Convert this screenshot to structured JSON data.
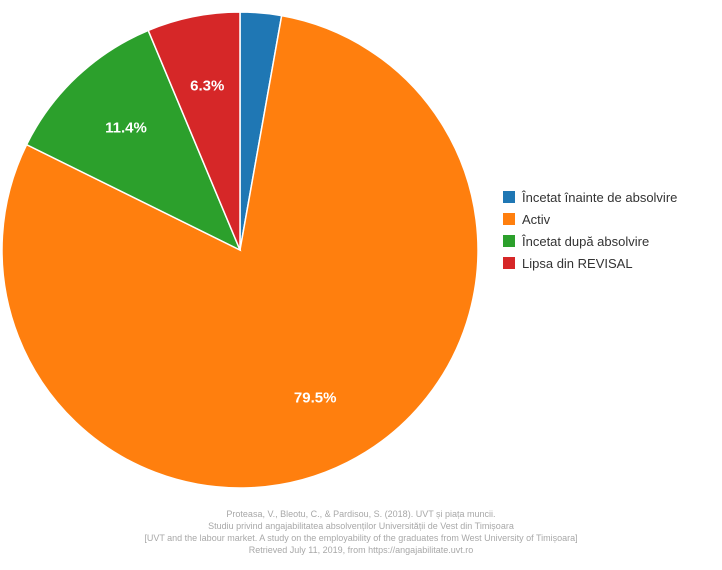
{
  "chart_data": {
    "type": "pie",
    "title": "",
    "slices": [
      {
        "label": "Încetat înainte de absolvire",
        "value": 2.8,
        "color": "#1f77b4",
        "data_label": ""
      },
      {
        "label": "Activ",
        "value": 79.5,
        "color": "#ff7f0e",
        "data_label": "79.5%"
      },
      {
        "label": "Încetat după absolvire",
        "value": 11.4,
        "color": "#2ca02c",
        "data_label": "11.4%"
      },
      {
        "label": "Lipsa din REVISAL",
        "value": 6.3,
        "color": "#d62728",
        "data_label": "6.3%"
      }
    ],
    "legend_position": "right",
    "start_angle": "12 o'clock",
    "direction": "clockwise"
  },
  "source": {
    "line1": "Proteasa, V., Bleotu, C., & Pardisou, S. (2018). UVT și piața muncii.",
    "line2": "Studiu privind angajabilitatea absolvenților Universității de Vest din Timișoara",
    "line3": "[UVT and the labour market. A study on the employability of the graduates from West University of Timișoara]",
    "line4": "Retrieved July 11, 2019, from https://angajabilitate.uvt.ro"
  }
}
